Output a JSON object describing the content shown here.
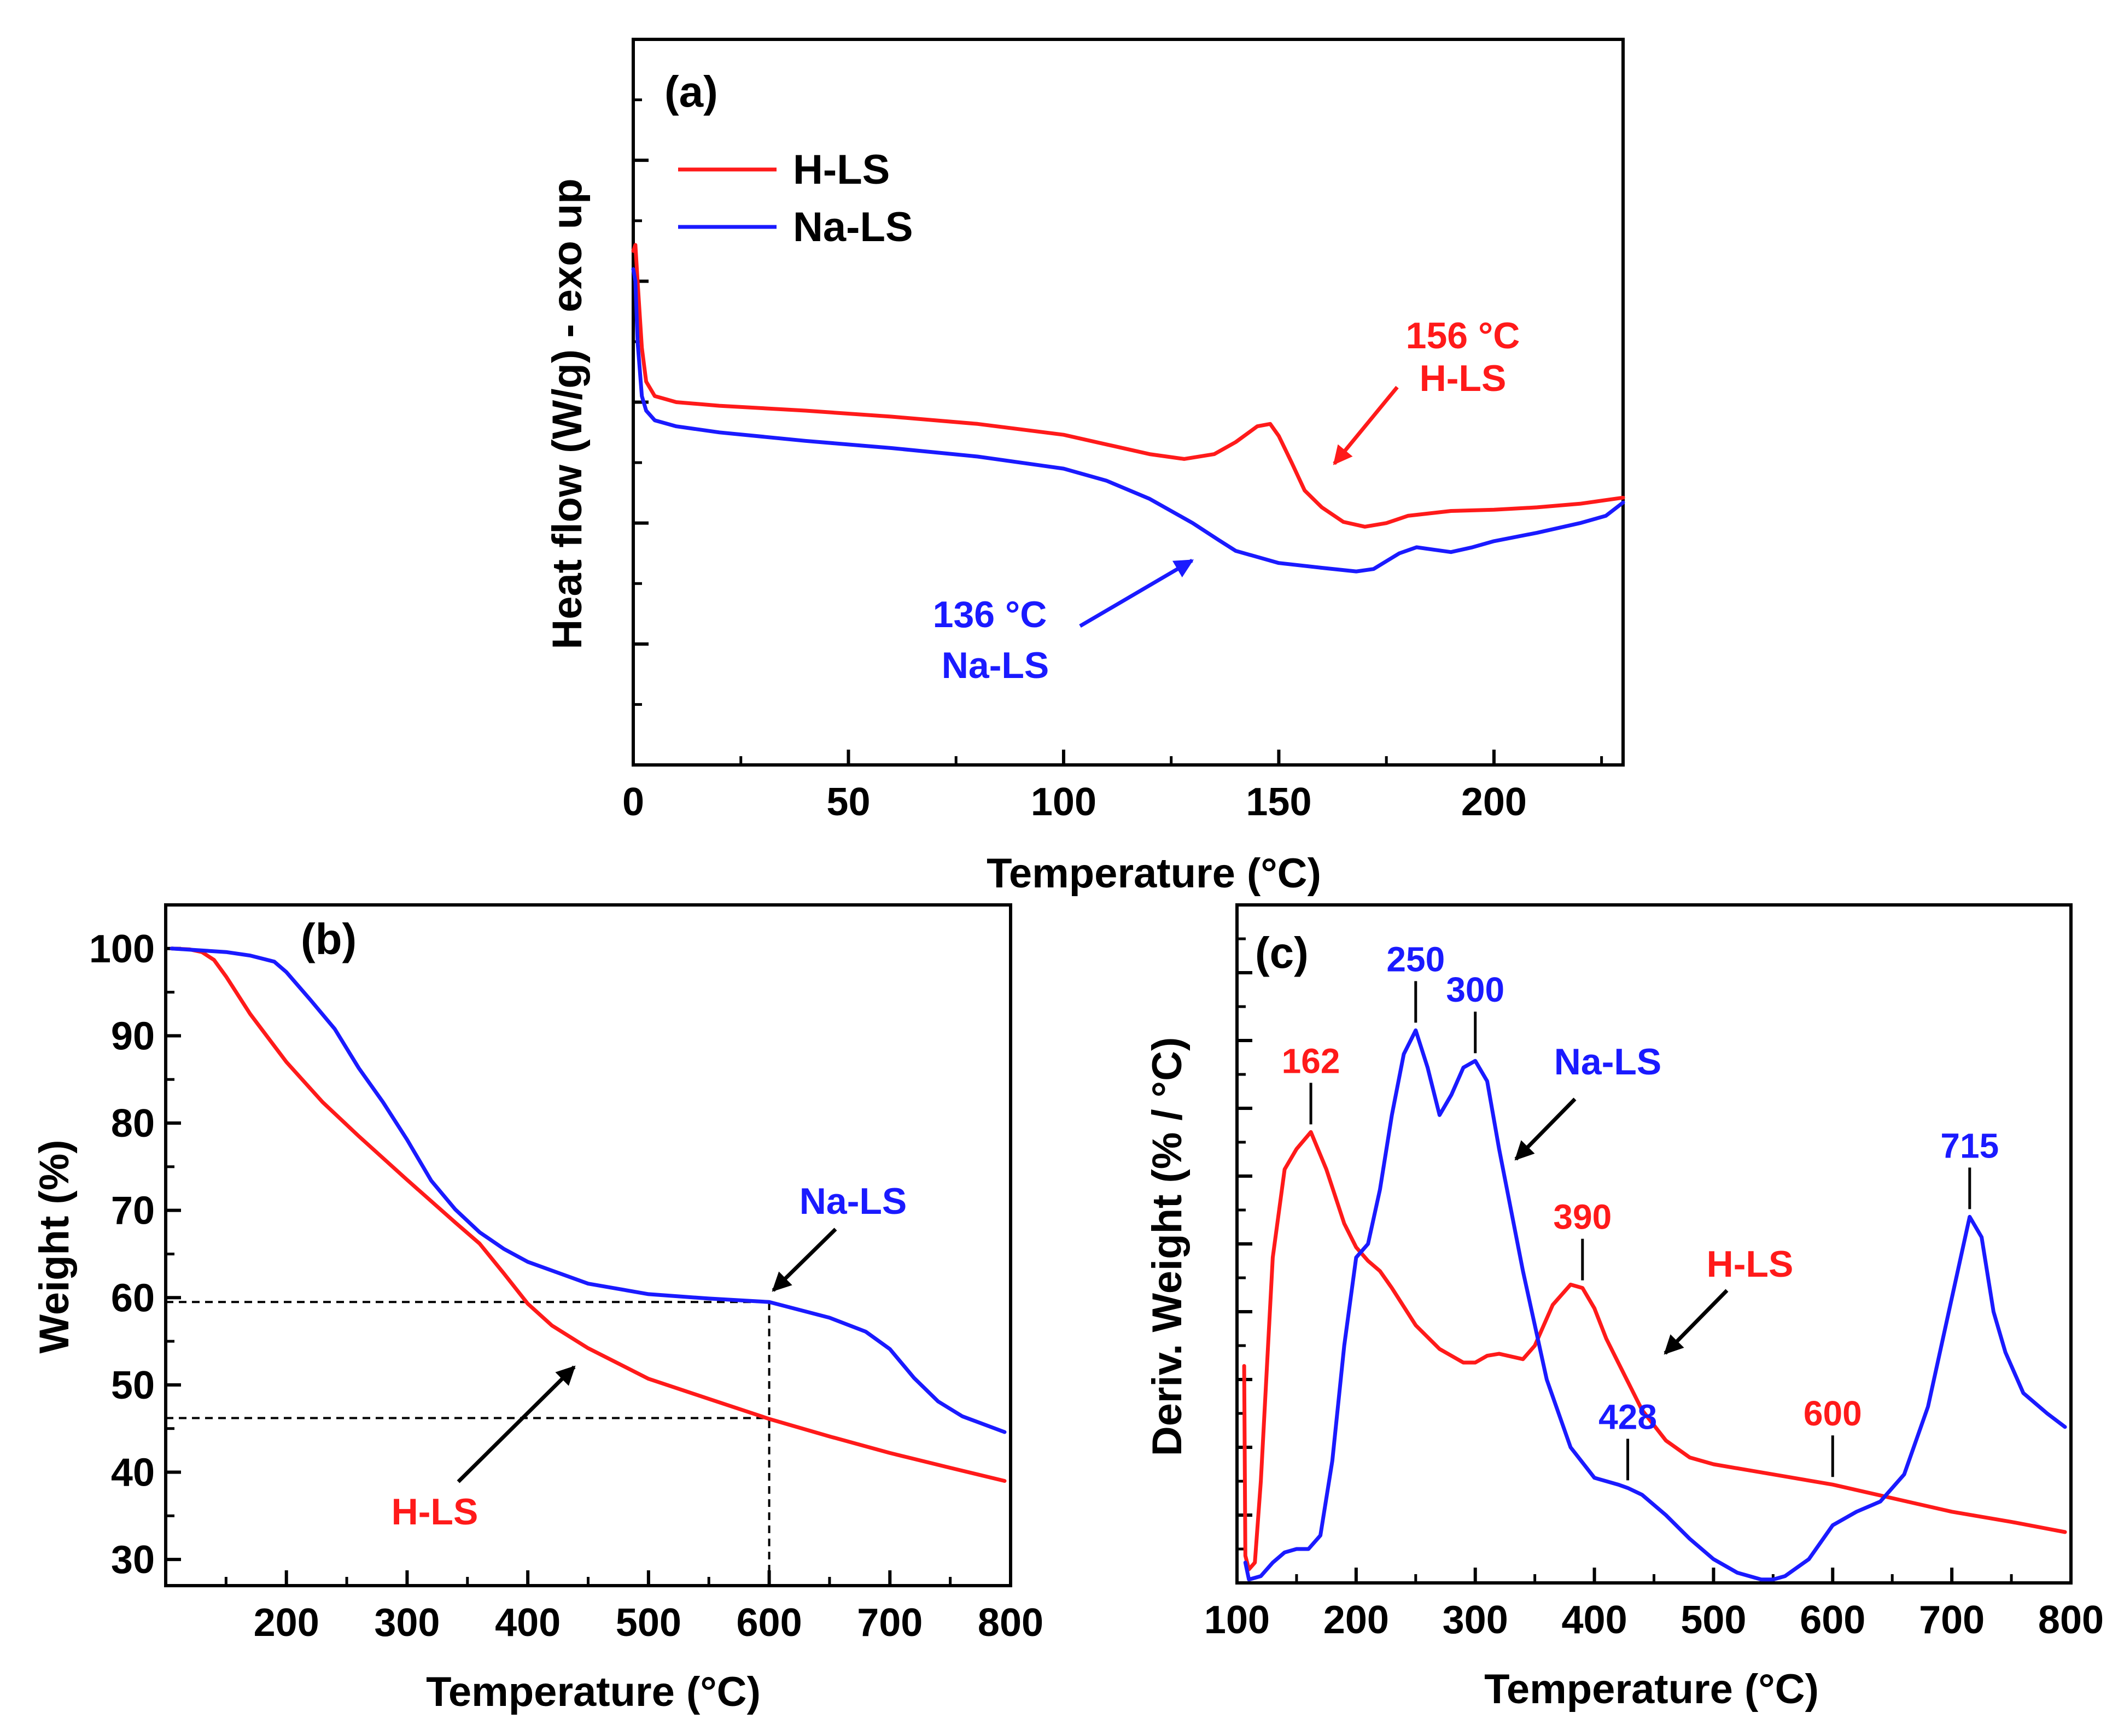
{
  "colors": {
    "h_ls": "#ff1a1a",
    "na_ls": "#1a1aff",
    "axis": "#000000"
  },
  "chart_data": [
    {
      "id": "a",
      "type": "line",
      "panel_label": "(a)",
      "xlabel": "Temperature (°C)",
      "ylabel": "Heat flow (W/g) - exo up",
      "xlim": [
        0,
        230
      ],
      "ylim": [
        0,
        6
      ],
      "xticks": [
        0,
        50,
        100,
        150,
        200
      ],
      "y_tick_labels_shown": false,
      "legend": {
        "position": "top-left",
        "entries": [
          "H-LS",
          "Na-LS"
        ]
      },
      "series": [
        {
          "name": "H-LS",
          "color": "#ff1a1a",
          "x": [
            0,
            0.5,
            1,
            2,
            3,
            5,
            10,
            20,
            40,
            60,
            80,
            100,
            110,
            120,
            128,
            135,
            140,
            145,
            148,
            150,
            153,
            156,
            160,
            165,
            170,
            175,
            180,
            190,
            200,
            210,
            220,
            230
          ],
          "y": [
            4.25,
            4.3,
            4.0,
            3.45,
            3.17,
            3.05,
            3.0,
            2.97,
            2.93,
            2.88,
            2.82,
            2.73,
            2.65,
            2.57,
            2.53,
            2.57,
            2.67,
            2.8,
            2.82,
            2.72,
            2.5,
            2.27,
            2.13,
            2.01,
            1.97,
            2.0,
            2.06,
            2.1,
            2.11,
            2.13,
            2.16,
            2.21
          ]
        },
        {
          "name": "Na-LS",
          "color": "#1a1aff",
          "x": [
            0,
            0.5,
            1,
            2,
            3,
            5,
            10,
            20,
            40,
            60,
            80,
            100,
            110,
            120,
            130,
            136,
            140,
            150,
            160,
            168,
            172,
            178,
            182,
            186,
            190,
            195,
            200,
            210,
            220,
            226,
            230
          ],
          "y": [
            4.1,
            4.0,
            3.5,
            3.05,
            2.93,
            2.85,
            2.8,
            2.75,
            2.68,
            2.62,
            2.55,
            2.45,
            2.35,
            2.2,
            2.0,
            1.86,
            1.77,
            1.67,
            1.63,
            1.6,
            1.62,
            1.75,
            1.8,
            1.78,
            1.76,
            1.8,
            1.85,
            1.92,
            2.0,
            2.06,
            2.17
          ]
        }
      ],
      "annotations": [
        {
          "lines": [
            "156 °C",
            "H-LS"
          ],
          "series": "H-LS",
          "x": 156
        },
        {
          "lines": [
            "136 °C",
            "Na-LS"
          ],
          "series": "Na-LS",
          "x": 136
        }
      ]
    },
    {
      "id": "b",
      "type": "line",
      "panel_label": "(b)",
      "xlabel": "Temperature (°C)",
      "ylabel": "Weight (%)",
      "xlim": [
        100,
        800
      ],
      "ylim": [
        27,
        105
      ],
      "xticks": [
        200,
        300,
        400,
        500,
        600,
        700,
        800
      ],
      "yticks": [
        30,
        40,
        50,
        60,
        70,
        80,
        90,
        100
      ],
      "series": [
        {
          "name": "H-LS",
          "color": "#ff1a1a",
          "x": [
            105,
            120,
            130,
            140,
            150,
            170,
            200,
            230,
            260,
            300,
            340,
            360,
            380,
            400,
            420,
            450,
            500,
            550,
            600,
            650,
            700,
            750,
            795
          ],
          "y": [
            100,
            99.9,
            99.6,
            98.7,
            96.8,
            92.5,
            87,
            82.4,
            78.5,
            73.5,
            68.6,
            66.2,
            62.8,
            59.3,
            56.8,
            54.2,
            50.7,
            48.4,
            46.1,
            44.1,
            42.2,
            40.5,
            39
          ]
        },
        {
          "name": "Na-LS",
          "color": "#1a1aff",
          "x": [
            105,
            150,
            170,
            190,
            200,
            220,
            240,
            260,
            280,
            300,
            320,
            340,
            360,
            380,
            400,
            450,
            500,
            550,
            600,
            650,
            680,
            700,
            720,
            740,
            760,
            795
          ],
          "y": [
            100,
            99.6,
            99.2,
            98.5,
            97.3,
            94.1,
            90.8,
            86.3,
            82.4,
            78.1,
            73.4,
            70.1,
            67.5,
            65.6,
            64.1,
            61.6,
            60.4,
            59.9,
            59.5,
            57.7,
            56.1,
            54.1,
            50.8,
            48.1,
            46.4,
            44.6
          ]
        }
      ],
      "reference_lines": [
        {
          "type": "h",
          "y": 59.5,
          "x_from": 100,
          "x_to": 600
        },
        {
          "type": "h",
          "y": 46.2,
          "x_from": 100,
          "x_to": 600
        },
        {
          "type": "v",
          "x": 600,
          "y_from": 27,
          "y_to": 59.5
        }
      ],
      "annotations": [
        {
          "lines": [
            "Na-LS"
          ],
          "series": "Na-LS",
          "x": 600
        },
        {
          "lines": [
            "H-LS"
          ],
          "series": "H-LS",
          "x": 450
        }
      ]
    },
    {
      "id": "c",
      "type": "line",
      "panel_label": "(c)",
      "xlabel": "Temperature (°C)",
      "ylabel": "Deriv. Weight (% / °C)",
      "xlim": [
        100,
        800
      ],
      "ylim": [
        0,
        10
      ],
      "xticks": [
        100,
        200,
        300,
        400,
        500,
        600,
        700,
        800
      ],
      "y_tick_labels_shown": false,
      "series": [
        {
          "name": "H-LS",
          "color": "#ff1a1a",
          "x": [
            106,
            107,
            110,
            115,
            120,
            130,
            140,
            150,
            162,
            175,
            190,
            200,
            210,
            220,
            230,
            250,
            270,
            290,
            300,
            310,
            320,
            340,
            350,
            365,
            380,
            390,
            400,
            410,
            420,
            440,
            460,
            480,
            500,
            550,
            600,
            650,
            700,
            750,
            795
          ],
          "y": [
            3.2,
            0.4,
            0.2,
            0.3,
            1.5,
            4.8,
            6.1,
            6.4,
            6.65,
            6.1,
            5.3,
            4.95,
            4.75,
            4.6,
            4.35,
            3.8,
            3.45,
            3.25,
            3.25,
            3.35,
            3.38,
            3.3,
            3.5,
            4.1,
            4.4,
            4.35,
            4.05,
            3.6,
            3.25,
            2.55,
            2.1,
            1.85,
            1.75,
            1.6,
            1.45,
            1.25,
            1.05,
            0.9,
            0.75
          ]
        },
        {
          "name": "Na-LS",
          "color": "#1a1aff",
          "x": [
            107,
            110,
            120,
            130,
            140,
            150,
            160,
            170,
            180,
            190,
            200,
            210,
            220,
            230,
            240,
            250,
            260,
            270,
            280,
            290,
            300,
            310,
            320,
            340,
            360,
            380,
            400,
            420,
            428,
            440,
            460,
            480,
            500,
            520,
            540,
            550,
            560,
            580,
            600,
            620,
            640,
            660,
            680,
            700,
            715,
            725,
            735,
            745,
            760,
            780,
            795
          ],
          "y": [
            0.3,
            0.05,
            0.1,
            0.3,
            0.45,
            0.5,
            0.5,
            0.7,
            1.8,
            3.5,
            4.8,
            5.0,
            5.8,
            6.9,
            7.8,
            8.15,
            7.6,
            6.9,
            7.2,
            7.6,
            7.7,
            7.4,
            6.4,
            4.6,
            3.0,
            2.0,
            1.55,
            1.45,
            1.4,
            1.3,
            1.0,
            0.65,
            0.35,
            0.15,
            0.05,
            0.05,
            0.1,
            0.35,
            0.85,
            1.05,
            1.2,
            1.6,
            2.6,
            4.2,
            5.4,
            5.1,
            4.0,
            3.4,
            2.8,
            2.5,
            2.3
          ]
        }
      ],
      "peaks": [
        {
          "label": "162",
          "series": "H-LS",
          "x": 162
        },
        {
          "label": "250",
          "series": "Na-LS",
          "x": 250
        },
        {
          "label": "300",
          "series": "Na-LS",
          "x": 300
        },
        {
          "label": "390",
          "series": "H-LS",
          "x": 390
        },
        {
          "label": "428",
          "series": "Na-LS",
          "x": 428
        },
        {
          "label": "600",
          "series": "H-LS",
          "x": 600
        },
        {
          "label": "715",
          "series": "Na-LS",
          "x": 715
        }
      ],
      "annotations": [
        {
          "lines": [
            "Na-LS"
          ],
          "series": "Na-LS",
          "x": 310
        },
        {
          "lines": [
            "H-LS"
          ],
          "series": "H-LS",
          "x": 445
        }
      ]
    }
  ]
}
